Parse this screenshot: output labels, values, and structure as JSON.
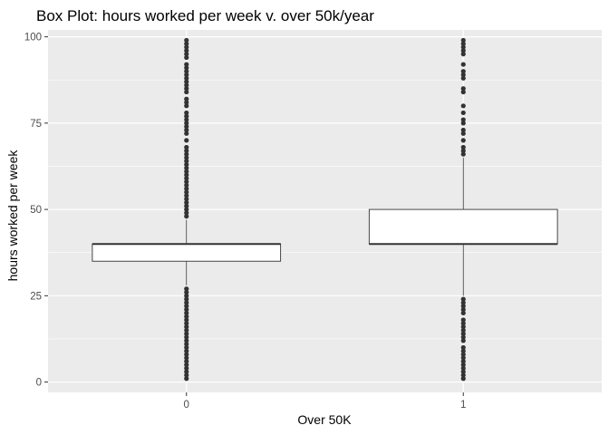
{
  "chart_data": {
    "type": "box",
    "title": "Box Plot: hours worked per week v. over 50k/year",
    "xlabel": "Over 50K",
    "ylabel": "hours worked per week",
    "categories": [
      "0",
      "1"
    ],
    "ylim": [
      -3,
      102
    ],
    "yticks": [
      0,
      25,
      50,
      75,
      100
    ],
    "grid": true,
    "boxes": [
      {
        "category": "0",
        "q1": 35,
        "median": 40,
        "q3": 40,
        "whisker_low": 28,
        "whisker_high": 47,
        "outliers": [
          1,
          2,
          3,
          4,
          5,
          6,
          7,
          8,
          9,
          10,
          11,
          12,
          13,
          14,
          15,
          16,
          17,
          18,
          19,
          20,
          21,
          22,
          23,
          24,
          25,
          26,
          27,
          48,
          49,
          50,
          51,
          52,
          53,
          54,
          55,
          56,
          57,
          58,
          59,
          60,
          61,
          62,
          63,
          64,
          65,
          66,
          67,
          68,
          70,
          72,
          73,
          74,
          75,
          76,
          77,
          78,
          80,
          81,
          82,
          84,
          85,
          86,
          87,
          88,
          89,
          90,
          91,
          92,
          94,
          95,
          96,
          97,
          98,
          99
        ]
      },
      {
        "category": "1",
        "q1": 40,
        "median": 40,
        "q3": 50,
        "whisker_low": 25,
        "whisker_high": 65,
        "outliers": [
          1,
          2,
          3,
          4,
          5,
          6,
          7,
          8,
          9,
          10,
          12,
          13,
          14,
          15,
          16,
          17,
          18,
          20,
          21,
          22,
          23,
          24,
          66,
          67,
          68,
          70,
          72,
          73,
          75,
          76,
          78,
          80,
          84,
          85,
          88,
          89,
          90,
          92,
          95,
          96,
          97,
          98,
          99
        ]
      }
    ]
  }
}
